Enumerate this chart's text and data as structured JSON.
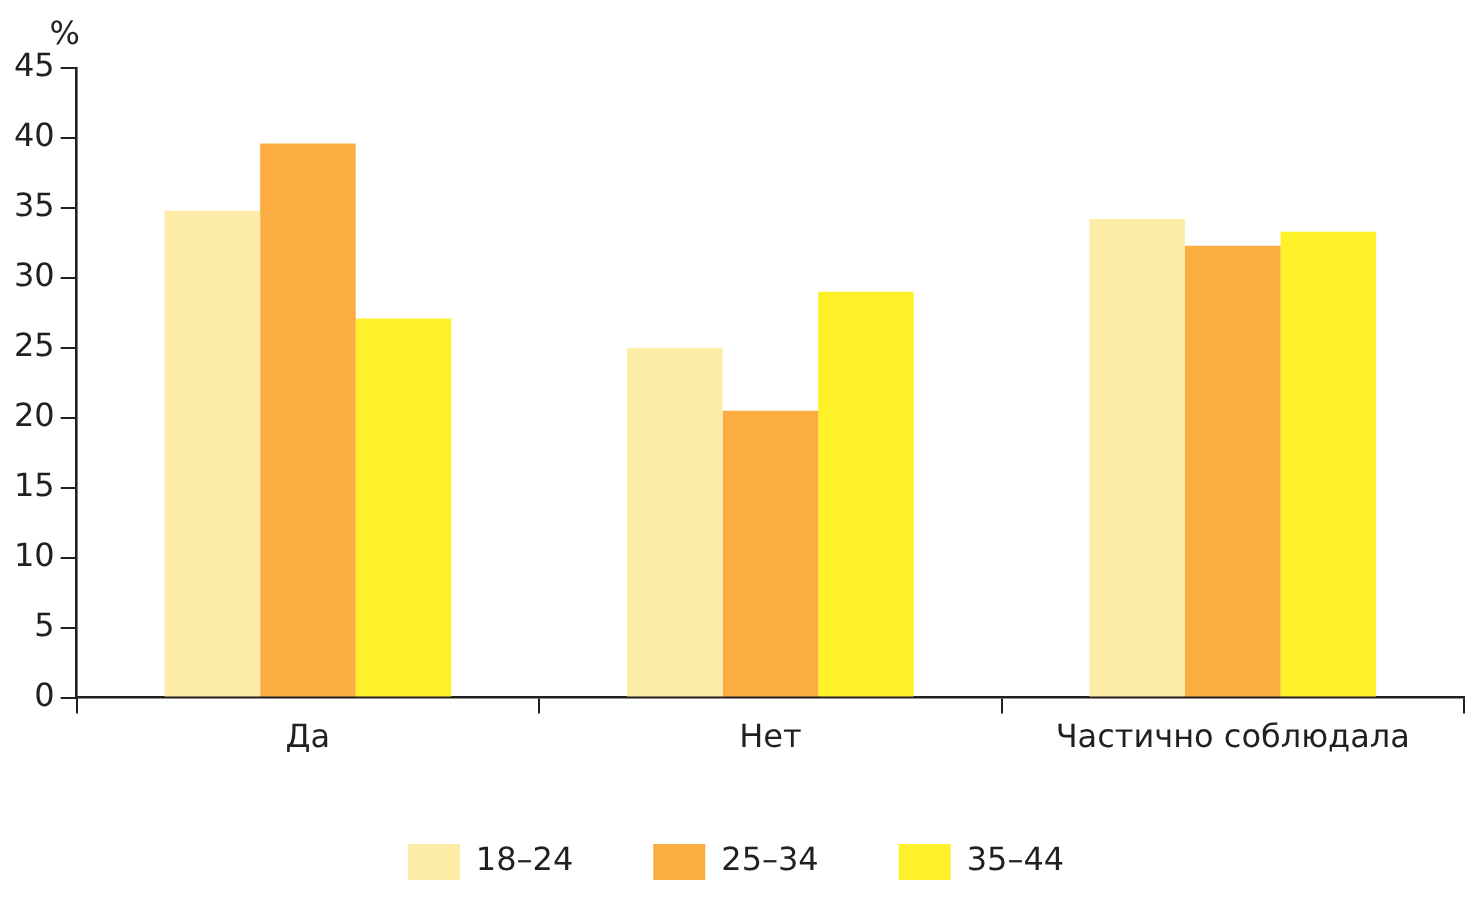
{
  "chart_data": {
    "type": "bar",
    "ylabel": "%",
    "categories": [
      "Да",
      "Нет",
      "Частично соблюдала"
    ],
    "series": [
      {
        "name": "18–24",
        "color": "#fdeca6",
        "values": [
          34.8,
          25.0,
          34.2
        ]
      },
      {
        "name": "25–34",
        "color": "#fbad42",
        "values": [
          39.6,
          20.5,
          32.3
        ]
      },
      {
        "name": "35–44",
        "color": "#fff129",
        "values": [
          27.1,
          29.0,
          33.3
        ]
      }
    ],
    "ylim": [
      0,
      45
    ],
    "yticks": [
      0,
      5,
      10,
      15,
      20,
      25,
      30,
      35,
      40,
      45
    ],
    "grid": false,
    "legend": "bottom"
  }
}
